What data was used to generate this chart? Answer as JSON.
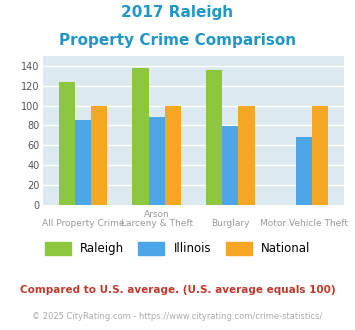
{
  "title_line1": "2017 Raleigh",
  "title_line2": "Property Crime Comparison",
  "cat_labels_top": [
    "",
    "Arson",
    "",
    ""
  ],
  "cat_labels_bottom": [
    "All Property Crime",
    "Larceny & Theft",
    "Burglary",
    "Motor Vehicle Theft"
  ],
  "series": {
    "Raleigh": [
      124,
      138,
      136,
      0
    ],
    "Illinois": [
      85,
      88,
      79,
      68
    ],
    "National": [
      100,
      100,
      100,
      100
    ]
  },
  "colors": {
    "Raleigh": "#8dc63f",
    "Illinois": "#4da6e8",
    "National": "#f5a623"
  },
  "ylim": [
    0,
    150
  ],
  "yticks": [
    0,
    20,
    40,
    60,
    80,
    100,
    120,
    140
  ],
  "bar_width": 0.22,
  "plot_bg": "#dce9f0",
  "grid_color": "#ffffff",
  "title_color": "#2196c8",
  "footnote1": "Compared to U.S. average. (U.S. average equals 100)",
  "footnote2": "© 2025 CityRating.com - https://www.cityrating.com/crime-statistics/",
  "footnote1_color": "#c0392b",
  "footnote2_color": "#aaaaaa",
  "legend_labels": [
    "Raleigh",
    "Illinois",
    "National"
  ]
}
